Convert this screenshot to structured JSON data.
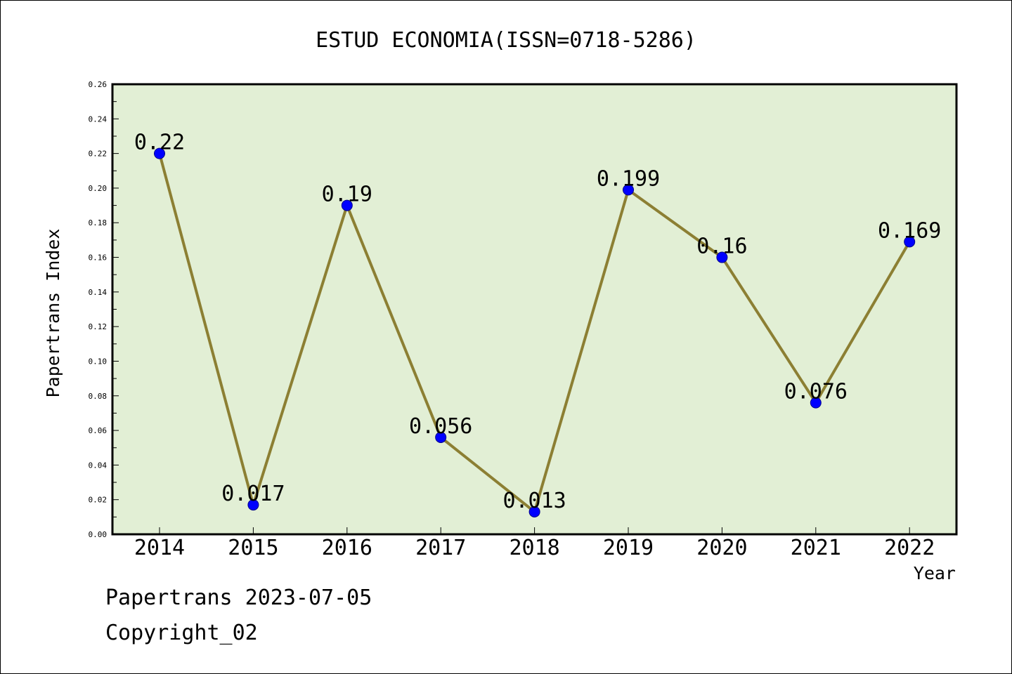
{
  "colors": {
    "plot_background": "#e2efd5",
    "line": "#8c7f33",
    "marker": "#0000ff",
    "marker_edge": "#00008b",
    "axis": "#000000"
  },
  "chart_data": {
    "type": "line",
    "title": "ESTUD ECONOMIA(ISSN=0718-5286)",
    "xlabel": "Year",
    "ylabel": "Papertrans Index",
    "categories": [
      "2014",
      "2015",
      "2016",
      "2017",
      "2018",
      "2019",
      "2020",
      "2021",
      "2022"
    ],
    "series": [
      {
        "values": [
          0.22,
          0.017,
          0.19,
          0.056,
          0.013,
          0.199,
          0.16,
          0.076,
          0.169
        ],
        "data_labels": [
          "0.22",
          "0.017",
          "0.19",
          "0.056",
          "0.013",
          "0.199",
          "0.16",
          "0.076",
          "0.169"
        ]
      }
    ],
    "ylim": [
      0,
      0.26
    ],
    "yticks": [
      "0.00",
      "0.02",
      "0.04",
      "0.06",
      "0.08",
      "0.10",
      "0.12",
      "0.14",
      "0.16",
      "0.18",
      "0.20",
      "0.22",
      "0.24",
      "0.26"
    ],
    "grid": false,
    "legend": "none"
  },
  "footer": {
    "date_line": "Papertrans 2023-07-05",
    "copyright": "Copyright_02"
  }
}
